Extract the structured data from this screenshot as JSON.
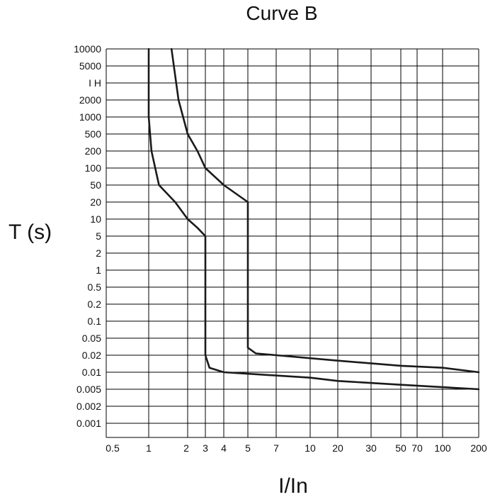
{
  "chart_data": {
    "type": "line",
    "title": "Curve B",
    "xlabel": "I/In",
    "ylabel": "T (s)",
    "x_ticks": [
      "0.5",
      "1",
      "2",
      "3",
      "4",
      "5",
      "7",
      "10",
      "20",
      "30",
      "50",
      "70",
      "100",
      "200"
    ],
    "y_ticks": [
      "10000",
      "5000",
      "I H",
      "2000",
      "1000",
      "500",
      "200",
      "100",
      "50",
      "20",
      "10",
      "5",
      "2",
      "1",
      "0.5",
      "0.2",
      "0.1",
      "0.05",
      "0.02",
      "0.01",
      "0.005",
      "0.002",
      "0.001"
    ],
    "grid": true,
    "series": [
      {
        "points": [
          [
            1,
            10000
          ],
          [
            1,
            1000
          ],
          [
            1.05,
            200
          ],
          [
            1.2,
            50
          ],
          [
            1.6,
            20
          ],
          [
            2,
            10
          ],
          [
            2.5,
            7
          ],
          [
            3,
            5
          ],
          [
            3,
            0.02
          ],
          [
            3.2,
            0.012
          ],
          [
            4,
            0.01
          ],
          [
            10,
            0.008
          ],
          [
            20,
            0.007
          ],
          [
            50,
            0.006
          ],
          [
            200,
            0.005
          ]
        ]
      },
      {
        "points": [
          [
            1.5,
            10000
          ],
          [
            1.7,
            2000
          ],
          [
            2,
            500
          ],
          [
            2.5,
            200
          ],
          [
            3,
            100
          ],
          [
            4,
            50
          ],
          [
            5,
            20
          ],
          [
            5,
            0.03
          ],
          [
            5.5,
            0.022
          ],
          [
            7,
            0.02
          ],
          [
            20,
            0.016
          ],
          [
            50,
            0.013
          ],
          [
            100,
            0.012
          ],
          [
            200,
            0.01
          ]
        ]
      }
    ]
  }
}
